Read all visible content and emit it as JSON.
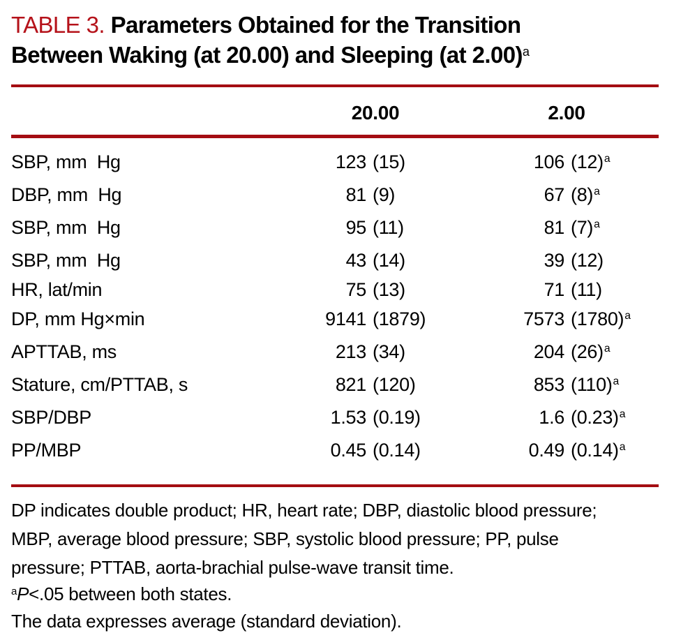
{
  "colors": {
    "accent_red_title": "#b5121a",
    "rule_red": "#a40d12",
    "text": "#000000"
  },
  "title": {
    "label": "TABLE 3.",
    "line1": "Parameters Obtained for the Transition",
    "line2": "Between Waking (at 20.00) and Sleeping (at 2.00)",
    "superscript": "a"
  },
  "table": {
    "header": {
      "label_column": "",
      "waking": "20.00",
      "sleeping": "2.00"
    },
    "rows": [
      {
        "label": "SBP, mm  Hg",
        "cells": [
          {
            "value": "123",
            "sd": "(15)",
            "sup": ""
          },
          {
            "value": "106",
            "sd": "(12)",
            "sup": "a"
          }
        ]
      },
      {
        "label": "DBP, mm  Hg",
        "cells": [
          {
            "value": "81",
            "sd": "(9)",
            "sup": ""
          },
          {
            "value": "67",
            "sd": "(8)",
            "sup": "a"
          }
        ]
      },
      {
        "label": "SBP, mm  Hg",
        "cells": [
          {
            "value": "95",
            "sd": "(11)",
            "sup": ""
          },
          {
            "value": "81",
            "sd": "(7)",
            "sup": "a"
          }
        ]
      },
      {
        "label": "SBP, mm  Hg",
        "cells": [
          {
            "value": "43",
            "sd": "(14)",
            "sup": ""
          },
          {
            "value": "39",
            "sd": "(12)",
            "sup": ""
          }
        ]
      },
      {
        "label": "HR, lat/min",
        "cells": [
          {
            "value": "75",
            "sd": "(13)",
            "sup": ""
          },
          {
            "value": "71",
            "sd": "(11)",
            "sup": ""
          }
        ]
      },
      {
        "label": "DP, mm Hg×min",
        "cells": [
          {
            "value": "9141",
            "sd": "(1879)",
            "sup": ""
          },
          {
            "value": "7573",
            "sd": "(1780)",
            "sup": "a"
          }
        ]
      },
      {
        "label": "APTTAB, ms",
        "cells": [
          {
            "value": "213",
            "sd": "(34)",
            "sup": ""
          },
          {
            "value": "204",
            "sd": "(26)",
            "sup": "a"
          }
        ]
      },
      {
        "label": "Stature, cm/PTTAB, s",
        "cells": [
          {
            "value": "821",
            "sd": "(120)",
            "sup": ""
          },
          {
            "value": "853",
            "sd": "(110)",
            "sup": "a"
          }
        ]
      },
      {
        "label": "SBP/DBP",
        "cells": [
          {
            "value": "1.53",
            "sd": "(0.19)",
            "sup": ""
          },
          {
            "value": "1.6",
            "sd": "(0.23)",
            "sup": "a"
          }
        ]
      },
      {
        "label": "PP/MBP",
        "cells": [
          {
            "value": "0.45",
            "sd": "(0.14)",
            "sup": ""
          },
          {
            "value": "0.49",
            "sd": "(0.14)",
            "sup": "a"
          }
        ]
      }
    ]
  },
  "footnotes": {
    "abbrev_lines": [
      "DP indicates double product; HR, heart rate; DBP, diastolic blood pressure;",
      "MBP, average blood pressure; SBP, systolic blood pressure; PP, pulse",
      "pressure; PTTAB, aorta-brachial pulse-wave transit time."
    ],
    "significance": {
      "sup": "a",
      "var": "P",
      "text": "<.05 between both states."
    },
    "data_note": "The data expresses average (standard deviation)."
  }
}
